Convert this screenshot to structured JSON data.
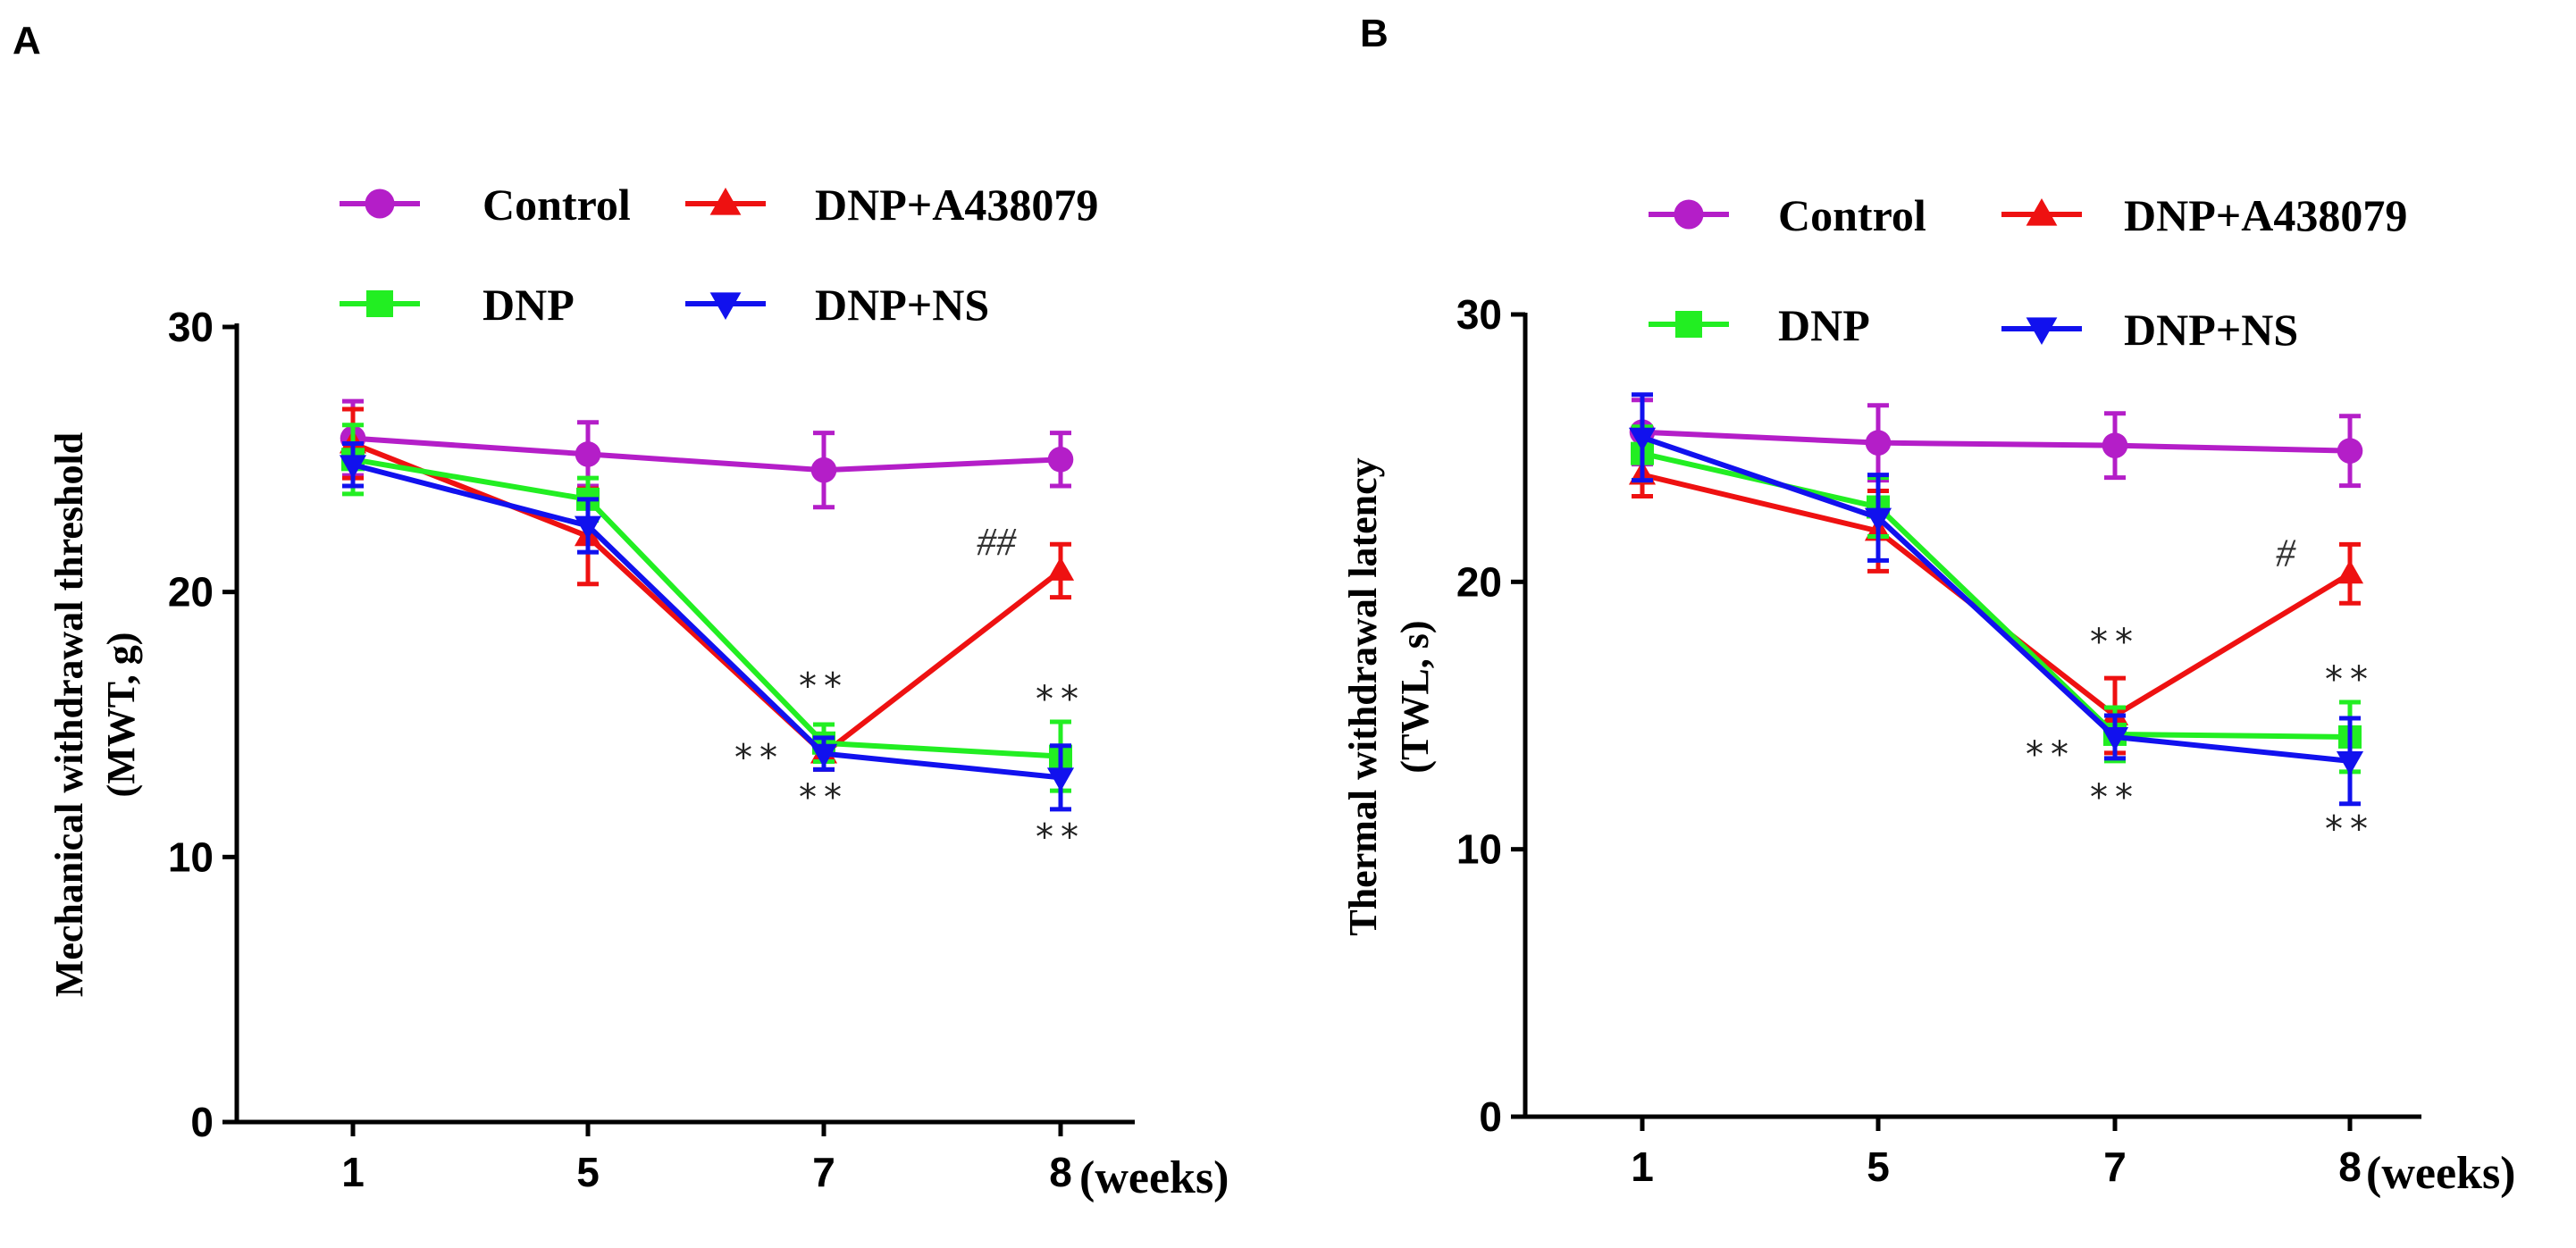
{
  "colors": {
    "Control": "#b41ec8",
    "DNP": "#22ee22",
    "DNP+A438079": "#ee1111",
    "DNP+NS": "#1111ee"
  },
  "legend": [
    {
      "name": "Control",
      "marker": "circle"
    },
    {
      "name": "DNP+A438079",
      "marker": "triangle-up"
    },
    {
      "name": "DNP",
      "marker": "square"
    },
    {
      "name": "DNP+NS",
      "marker": "triangle-down"
    }
  ],
  "chart_data": [
    {
      "panel": "A",
      "type": "line",
      "title": "",
      "xlabel": "(weeks)",
      "ylabel_line1": "Mechanical withdrawal threshold",
      "ylabel_line2": "(MWT, g)",
      "categories": [
        "1",
        "5",
        "7",
        "8"
      ],
      "ylim": [
        0,
        30
      ],
      "yticks": [
        "0",
        "10",
        "20",
        "30"
      ],
      "series": [
        {
          "name": "Control",
          "values": [
            25.8,
            25.2,
            24.6,
            25.0
          ],
          "errors": [
            1.4,
            1.2,
            1.4,
            1.0
          ]
        },
        {
          "name": "DNP+A438079",
          "values": [
            25.6,
            22.1,
            13.9,
            20.8
          ],
          "errors": [
            1.3,
            1.8,
            0.6,
            1.0
          ]
        },
        {
          "name": "DNP",
          "values": [
            25.0,
            23.5,
            14.3,
            13.8
          ],
          "errors": [
            1.3,
            0.8,
            0.7,
            1.3
          ]
        },
        {
          "name": "DNP+NS",
          "values": [
            24.8,
            22.5,
            13.9,
            13.0
          ],
          "errors": [
            0.8,
            1.0,
            0.6,
            1.2
          ]
        }
      ],
      "annotations": [
        {
          "text": "**",
          "cat": 2,
          "y": 16.0
        },
        {
          "text": "**",
          "cat": 2,
          "y": 11.8
        },
        {
          "text": "**",
          "cat": 2,
          "y": 13.3,
          "side": "left"
        },
        {
          "text": "**",
          "cat": 3,
          "y": 15.5
        },
        {
          "text": "**",
          "cat": 3,
          "y": 10.3
        },
        {
          "text": "##",
          "cat": 3,
          "y": 21.4,
          "side": "left",
          "kind": "hash"
        }
      ]
    },
    {
      "panel": "B",
      "type": "line",
      "title": "",
      "xlabel": "(weeks)",
      "ylabel_line1": "Thermal withdrawal latency",
      "ylabel_line2": "(TWL, s)",
      "categories": [
        "1",
        "5",
        "7",
        "8"
      ],
      "ylim": [
        0,
        30
      ],
      "yticks": [
        "0",
        "10",
        "20",
        "30"
      ],
      "series": [
        {
          "name": "Control",
          "values": [
            25.6,
            25.2,
            25.1,
            24.9
          ],
          "errors": [
            1.2,
            1.4,
            1.2,
            1.3
          ]
        },
        {
          "name": "DNP+A438079",
          "values": [
            24.0,
            21.9,
            15.0,
            20.3
          ],
          "errors": [
            0.8,
            1.5,
            1.4,
            1.1
          ]
        },
        {
          "name": "DNP",
          "values": [
            24.8,
            22.8,
            14.3,
            14.2
          ],
          "errors": [
            1.0,
            1.1,
            1.0,
            1.3
          ]
        },
        {
          "name": "DNP+NS",
          "values": [
            25.4,
            22.4,
            14.2,
            13.3
          ],
          "errors": [
            1.6,
            1.6,
            0.8,
            1.6
          ]
        }
      ],
      "annotations": [
        {
          "text": "**",
          "cat": 2,
          "y": 17.3
        },
        {
          "text": "**",
          "cat": 2,
          "y": 11.5
        },
        {
          "text": "**",
          "cat": 2,
          "y": 13.1,
          "side": "left"
        },
        {
          "text": "**",
          "cat": 3,
          "y": 15.9
        },
        {
          "text": "**",
          "cat": 3,
          "y": 10.3
        },
        {
          "text": "#",
          "cat": 3,
          "y": 20.6,
          "side": "left",
          "kind": "hash"
        }
      ]
    }
  ]
}
